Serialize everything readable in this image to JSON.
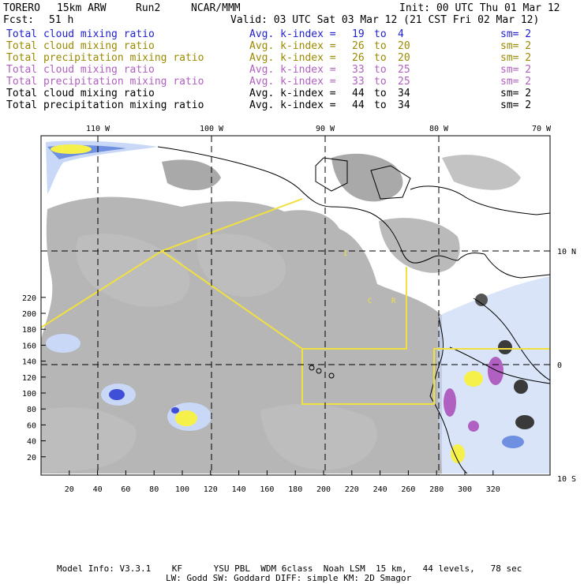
{
  "header": {
    "model": "TORERO",
    "resolution": "15km ARW",
    "run": "Run2",
    "org": "NCAR/MMM",
    "init": "Init: 00 UTC Thu 01 Mar 12",
    "fcst_label": "Fcst:",
    "fcst_value": "51 h",
    "valid": "Valid: 03 UTC Sat 03 Mar 12 (21 CST Fri 02 Mar 12)"
  },
  "legend": [
    {
      "field": "Total cloud mixing ratio",
      "index_label": "Avg. k-index =",
      "from": "19",
      "to_word": "to",
      "to": "4",
      "sm": "sm= 2",
      "color": "#1f1fd0"
    },
    {
      "field": "Total cloud mixing ratio",
      "index_label": "Avg. k-index =",
      "from": "26",
      "to_word": "to",
      "to": "20",
      "sm": "sm= 2",
      "color": "#9a8a00"
    },
    {
      "field": "Total precipitation mixing ratio",
      "index_label": "Avg. k-index =",
      "from": "26",
      "to_word": "to",
      "to": "20",
      "sm": "sm= 2",
      "color": "#9a8a00"
    },
    {
      "field": "Total cloud mixing ratio",
      "index_label": "Avg. k-index =",
      "from": "33",
      "to_word": "to",
      "to": "25",
      "sm": "sm= 2",
      "color": "#b060c0"
    },
    {
      "field": "Total precipitation mixing ratio",
      "index_label": "Avg. k-index =",
      "from": "33",
      "to_word": "to",
      "to": "25",
      "sm": "sm= 2",
      "color": "#b060c0"
    },
    {
      "field": "Total cloud mixing ratio",
      "index_label": "Avg. k-index =",
      "from": "44",
      "to_word": "to",
      "to": "34",
      "sm": "sm= 2",
      "color": "#000000"
    },
    {
      "field": "Total precipitation mixing ratio",
      "index_label": "Avg. k-index =",
      "from": "44",
      "to_word": "to",
      "to": "34",
      "sm": "sm= 2",
      "color": "#000000"
    }
  ],
  "map": {
    "lon_labels": [
      "110 W",
      "100 W",
      "90 W",
      "80 W",
      "70 W"
    ],
    "lat_labels": [
      "10 N",
      "0",
      "10 S"
    ],
    "y_ticks": [
      "220",
      "200",
      "180",
      "160",
      "140",
      "120",
      "100",
      "80",
      "60",
      "40",
      "20"
    ],
    "x_ticks": [
      "20",
      "40",
      "60",
      "80",
      "100",
      "120",
      "140",
      "160",
      "180",
      "200",
      "220",
      "240",
      "260",
      "280",
      "300",
      "320"
    ],
    "box_letters": [
      "I",
      "C",
      "R"
    ],
    "colors": {
      "cloud_gray": "#a9a9a9",
      "blue": "#6f8fe0",
      "light_blue": "#c9d8f6",
      "yellow": "#f5f04a",
      "purple": "#b060c0",
      "box_line": "#f0e040"
    }
  },
  "footer": {
    "line1": "Model Info: V3.3.1    KF      YSU PBL  WDM 6class  Noah LSM  15 km,   44 levels,   78 sec",
    "line2": "LW: Godd SW: Goddard DIFF: simple KM: 2D Smagor"
  }
}
